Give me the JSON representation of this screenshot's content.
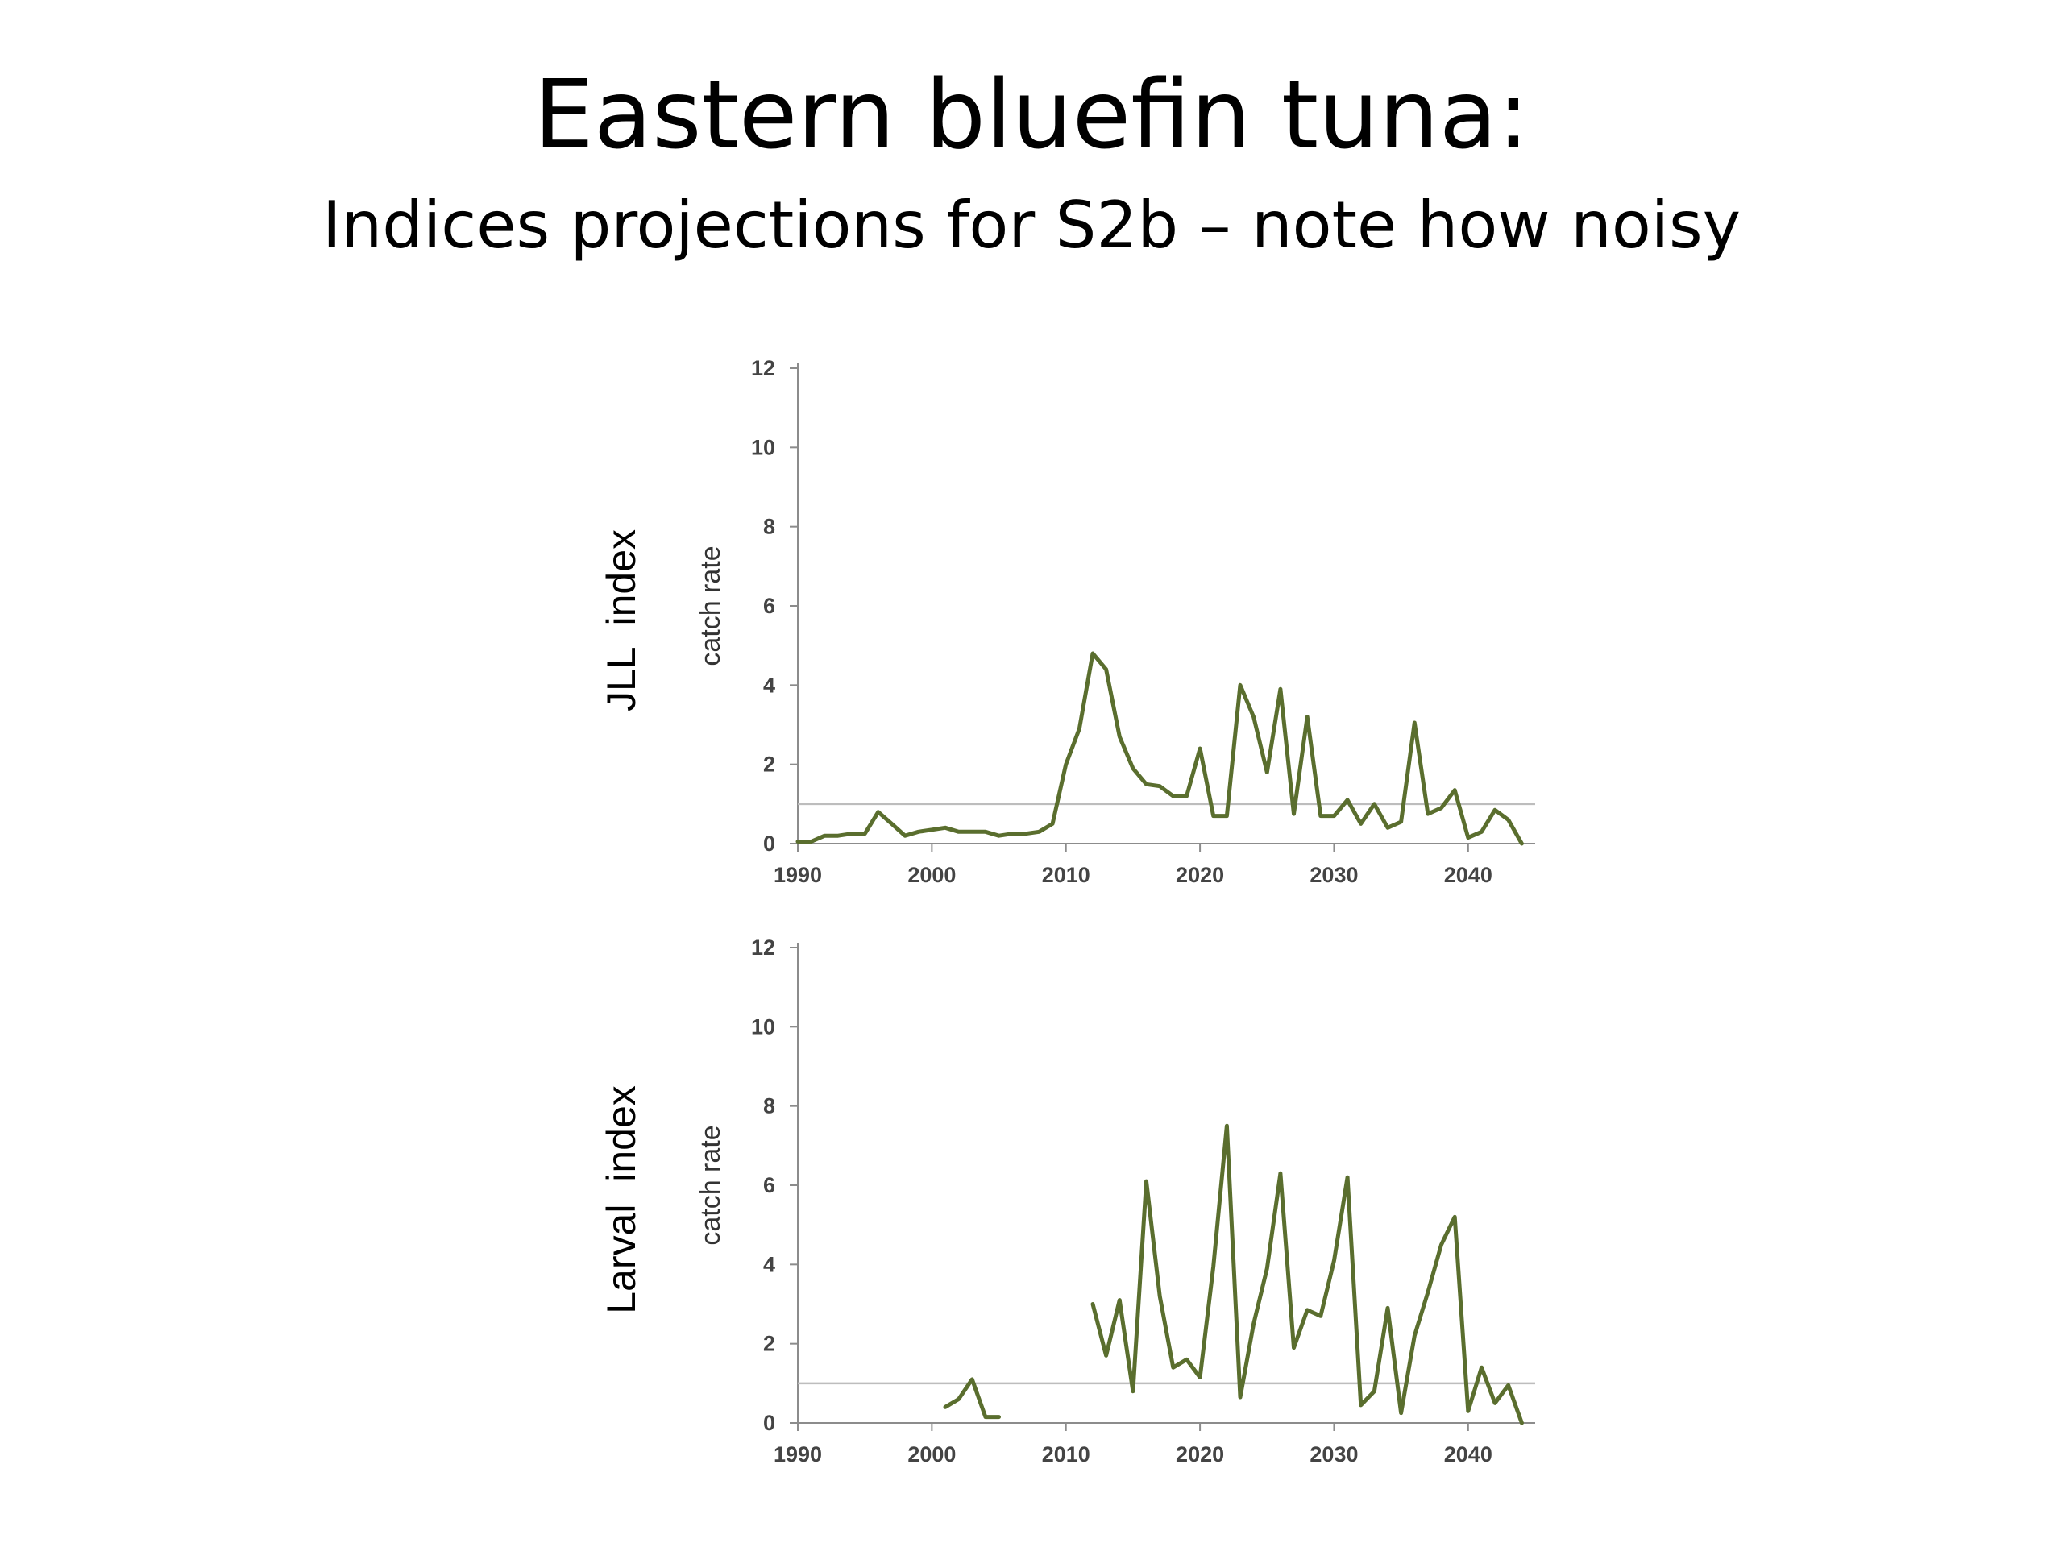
{
  "slide": {
    "title": "Eastern bluefin tuna:",
    "subtitle": "Indices projections for S2b – note how noisy"
  },
  "colors": {
    "line": "#5a6e2e",
    "reference": "#bdbdbd",
    "axis": "#8c8c8c"
  },
  "chart_data": [
    {
      "type": "line",
      "row_label": "JLL  index",
      "ylabel": "catch rate",
      "xlim": [
        1990,
        2045
      ],
      "ylim": [
        0,
        12
      ],
      "xticks": [
        1990,
        2000,
        2010,
        2020,
        2030,
        2040
      ],
      "yticks": [
        0,
        2,
        4,
        6,
        8,
        10,
        12
      ],
      "reference_line": 1,
      "x": [
        1990,
        1991,
        1992,
        1993,
        1994,
        1995,
        1996,
        1997,
        1998,
        1999,
        2000,
        2001,
        2002,
        2003,
        2004,
        2005,
        2006,
        2007,
        2008,
        2009,
        2010,
        2011,
        2012,
        2013,
        2014,
        2015,
        2016,
        2017,
        2018,
        2019,
        2020,
        2021,
        2022,
        2023,
        2024,
        2025,
        2026,
        2027,
        2028,
        2029,
        2030,
        2031,
        2032,
        2033,
        2034,
        2035,
        2036,
        2037,
        2038,
        2039,
        2040,
        2041,
        2042,
        2043,
        2044
      ],
      "values": [
        0.05,
        0.05,
        0.2,
        0.2,
        0.25,
        0.25,
        0.8,
        0.5,
        0.2,
        0.3,
        0.35,
        0.4,
        0.3,
        0.3,
        0.3,
        0.2,
        0.25,
        0.25,
        0.3,
        0.5,
        2.0,
        2.9,
        4.8,
        4.4,
        2.7,
        1.9,
        1.5,
        1.45,
        1.2,
        1.2,
        2.4,
        0.7,
        0.7,
        4.0,
        3.2,
        1.8,
        3.9,
        0.75,
        3.2,
        0.7,
        0.7,
        1.1,
        0.5,
        1.0,
        0.4,
        0.55,
        3.05,
        0.75,
        0.9,
        1.35,
        0.15,
        0.3,
        0.85,
        0.6,
        0.0
      ]
    },
    {
      "type": "line",
      "row_label": "Larval  index",
      "ylabel": "catch rate",
      "xlim": [
        1990,
        2045
      ],
      "ylim": [
        0,
        12
      ],
      "xticks": [
        1990,
        2000,
        2010,
        2020,
        2030,
        2040
      ],
      "yticks": [
        0,
        2,
        4,
        6,
        8,
        10,
        12
      ],
      "reference_line": 1,
      "x": [
        1990,
        1991,
        1992,
        1993,
        1994,
        1995,
        1996,
        1997,
        1998,
        1999,
        2000,
        2001,
        2002,
        2003,
        2004,
        2005,
        2006,
        2007,
        2008,
        2009,
        2010,
        2011,
        2012,
        2013,
        2014,
        2015,
        2016,
        2017,
        2018,
        2019,
        2020,
        2021,
        2022,
        2023,
        2024,
        2025,
        2026,
        2027,
        2028,
        2029,
        2030,
        2031,
        2032,
        2033,
        2034,
        2035,
        2036,
        2037,
        2038,
        2039,
        2040,
        2041,
        2042,
        2043,
        2044
      ],
      "values": [
        null,
        null,
        null,
        null,
        null,
        null,
        null,
        null,
        null,
        null,
        null,
        0.4,
        0.6,
        1.1,
        0.15,
        0.15,
        null,
        null,
        null,
        null,
        null,
        null,
        3.0,
        1.7,
        3.1,
        0.8,
        6.1,
        3.2,
        1.4,
        1.6,
        1.15,
        3.95,
        7.5,
        0.65,
        2.5,
        3.9,
        6.3,
        1.9,
        2.85,
        2.7,
        4.1,
        6.2,
        0.45,
        0.8,
        2.9,
        0.25,
        2.2,
        3.3,
        4.5,
        5.2,
        0.3,
        1.4,
        0.5,
        0.95,
        0.0
      ]
    }
  ]
}
